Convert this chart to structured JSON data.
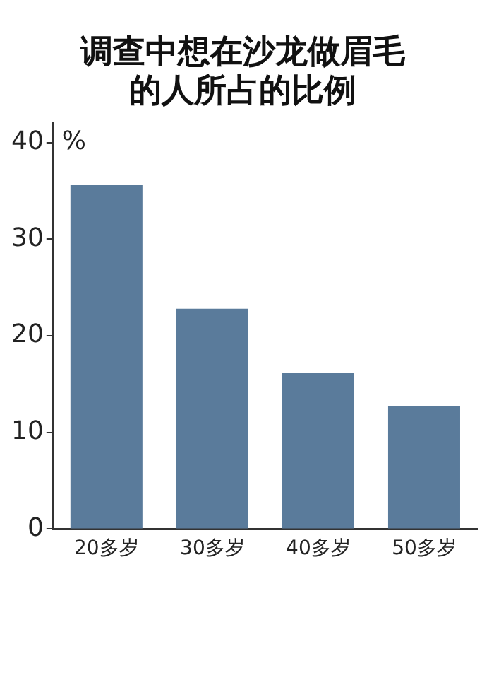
{
  "chart_data": {
    "type": "bar",
    "title": [
      "调查中想在沙龙做眉毛",
      "的人所占的比例"
    ],
    "ylabel": "%",
    "categories": [
      "20多岁",
      "30多岁",
      "40多岁",
      "50多岁"
    ],
    "values": [
      35.6,
      22.8,
      16.2,
      12.7
    ],
    "color": "#5a7b9b",
    "ylim": [
      0,
      42
    ],
    "yticks": [
      0,
      10,
      20,
      30,
      40
    ],
    "grid": false,
    "legend": false
  }
}
